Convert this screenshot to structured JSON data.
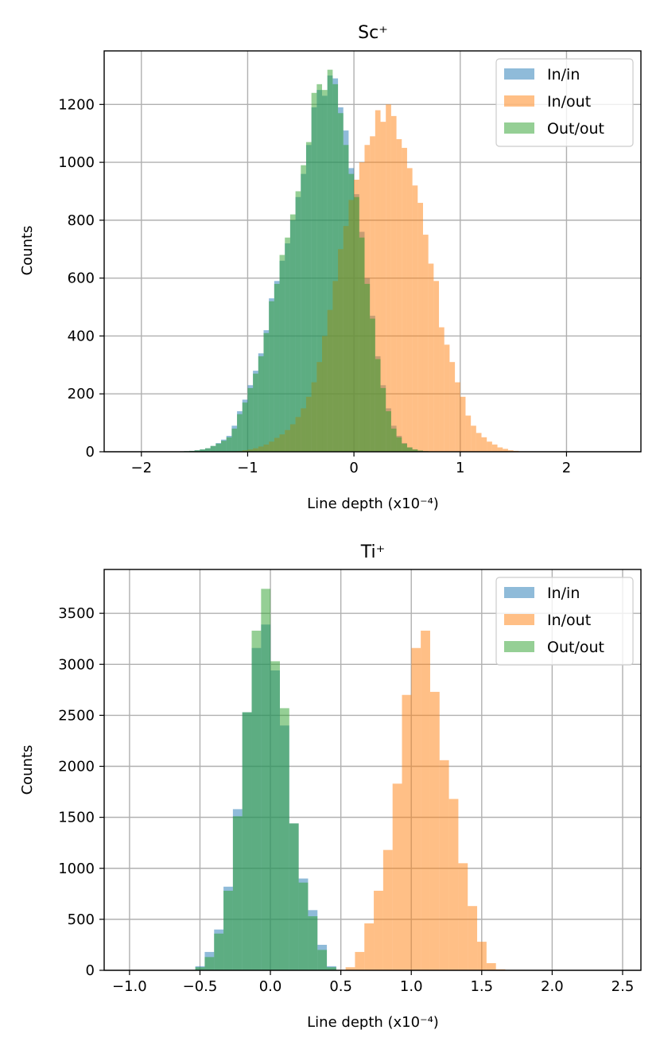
{
  "chart_data": [
    {
      "type": "histogram",
      "title": "Sc⁺",
      "xlabel": "Line depth (x10⁻⁴)",
      "ylabel": "Counts",
      "xlim": [
        -2.35,
        2.7
      ],
      "ylim": [
        0,
        1385
      ],
      "xticks": [
        -2,
        -1,
        0,
        1,
        2
      ],
      "xtick_labels": [
        "−2",
        "−1",
        "0",
        "1",
        "2"
      ],
      "yticks": [
        0,
        200,
        400,
        600,
        800,
        1000,
        1200
      ],
      "ytick_labels": [
        "0",
        "200",
        "400",
        "600",
        "800",
        "1000",
        "1200"
      ],
      "grid": true,
      "legend_position": "top-right",
      "bin_width": 0.05,
      "series": [
        {
          "name": "In/in",
          "color": "#1f77b4",
          "bin_start": -1.6,
          "counts": [
            2,
            3,
            5,
            8,
            12,
            20,
            30,
            42,
            55,
            90,
            140,
            180,
            230,
            280,
            340,
            420,
            530,
            590,
            660,
            720,
            800,
            880,
            960,
            1060,
            1190,
            1250,
            1230,
            1300,
            1290,
            1190,
            1110,
            980,
            890,
            760,
            600,
            470,
            330,
            230,
            150,
            90,
            55,
            30,
            15,
            8,
            4,
            2
          ]
        },
        {
          "name": "In/out",
          "color": "#ff7f0e",
          "bin_start": -1.1,
          "counts": [
            2,
            5,
            8,
            12,
            18,
            25,
            35,
            48,
            60,
            75,
            95,
            120,
            150,
            190,
            240,
            310,
            400,
            490,
            590,
            700,
            780,
            870,
            940,
            1000,
            1060,
            1090,
            1180,
            1140,
            1200,
            1160,
            1080,
            1050,
            980,
            920,
            860,
            750,
            650,
            590,
            430,
            370,
            310,
            240,
            190,
            125,
            90,
            65,
            50,
            35,
            25,
            15,
            10,
            5,
            3
          ]
        },
        {
          "name": "Out/out",
          "color": "#2ca02c",
          "bin_start": -1.6,
          "counts": [
            2,
            3,
            5,
            8,
            12,
            20,
            28,
            38,
            50,
            80,
            130,
            170,
            220,
            270,
            330,
            410,
            520,
            580,
            680,
            740,
            820,
            900,
            990,
            1070,
            1240,
            1270,
            1250,
            1320,
            1270,
            1170,
            1060,
            960,
            880,
            740,
            580,
            460,
            320,
            220,
            140,
            80,
            50,
            28,
            15,
            8,
            4,
            2
          ]
        }
      ]
    },
    {
      "type": "histogram",
      "title": "Ti⁺",
      "xlabel": "Line depth (x10⁻⁴)",
      "ylabel": "Counts",
      "xlim": [
        -1.18,
        2.63
      ],
      "ylim": [
        0,
        3930
      ],
      "xticks": [
        -1.0,
        -0.5,
        0.0,
        0.5,
        1.0,
        1.5,
        2.0,
        2.5
      ],
      "xtick_labels": [
        "−1.0",
        "−0.5",
        "0.0",
        "0.5",
        "1.0",
        "1.5",
        "2.0",
        "2.5"
      ],
      "yticks": [
        0,
        500,
        1000,
        1500,
        2000,
        2500,
        3000,
        3500
      ],
      "ytick_labels": [
        "0",
        "500",
        "1000",
        "1500",
        "2000",
        "2500",
        "3000",
        "3500"
      ],
      "grid": true,
      "legend_position": "top-right",
      "bin_width": 0.0667,
      "series": [
        {
          "name": "In/in",
          "color": "#1f77b4",
          "bin_start": -0.533,
          "counts": [
            40,
            180,
            400,
            820,
            1580,
            2530,
            3160,
            3390,
            2940,
            2400,
            1440,
            900,
            590,
            250,
            40
          ]
        },
        {
          "name": "In/out",
          "color": "#ff7f0e",
          "bin_start": 0.467,
          "counts": [
            5,
            30,
            180,
            460,
            780,
            1180,
            1830,
            2700,
            3160,
            3330,
            2730,
            2060,
            1680,
            1050,
            630,
            280,
            70,
            10
          ]
        },
        {
          "name": "Out/out",
          "color": "#2ca02c",
          "bin_start": -0.533,
          "counts": [
            30,
            130,
            360,
            780,
            1510,
            2530,
            3330,
            3740,
            3030,
            2570,
            1440,
            860,
            530,
            200,
            30
          ]
        }
      ]
    }
  ]
}
